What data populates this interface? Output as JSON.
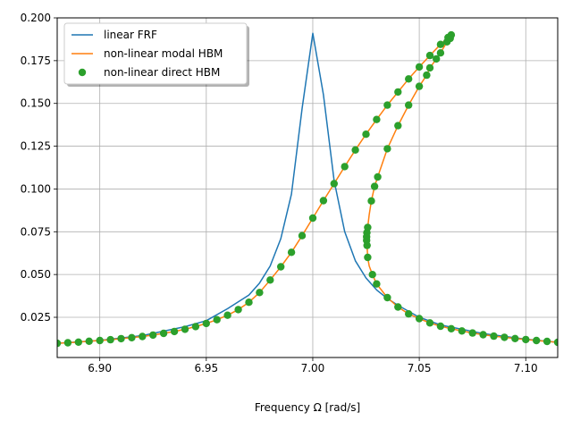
{
  "chart_data": {
    "type": "line",
    "title": "",
    "xlabel": "Frequency Ω [rad/s]",
    "ylabel": "",
    "xlim": [
      6.88,
      7.115
    ],
    "ylim": [
      0.0015,
      0.2
    ],
    "grid": true,
    "legend_position": "top-left",
    "x_ticks": [
      6.9,
      6.95,
      7.0,
      7.05,
      7.1
    ],
    "x_tick_labels": [
      "6.90",
      "6.95",
      "7.00",
      "7.05",
      "7.10"
    ],
    "y_ticks": [
      0.025,
      0.05,
      0.075,
      0.1,
      0.125,
      0.15,
      0.175,
      0.2
    ],
    "y_tick_labels": [
      "0.025",
      "0.050",
      "0.075",
      "0.100",
      "0.125",
      "0.150",
      "0.175",
      "0.200"
    ],
    "series": [
      {
        "name": "linear FRF",
        "style": "line",
        "color": "#1f77b4",
        "x": [
          6.88,
          6.9,
          6.92,
          6.94,
          6.95,
          6.96,
          6.97,
          6.975,
          6.98,
          6.985,
          6.99,
          6.995,
          7.0,
          7.005,
          7.01,
          7.015,
          7.02,
          7.025,
          7.03,
          7.035,
          7.04,
          7.05,
          7.06,
          7.08,
          7.1,
          7.115
        ],
        "y": [
          0.0098,
          0.0115,
          0.0143,
          0.0195,
          0.023,
          0.03,
          0.038,
          0.045,
          0.055,
          0.071,
          0.097,
          0.147,
          0.191,
          0.155,
          0.105,
          0.075,
          0.058,
          0.048,
          0.041,
          0.036,
          0.032,
          0.025,
          0.0205,
          0.0155,
          0.0122,
          0.0104
        ]
      },
      {
        "name": "non-linear modal HBM",
        "style": "line",
        "color": "#ff7f0e",
        "x": [
          6.88,
          6.885,
          6.89,
          6.895,
          6.9,
          6.905,
          6.91,
          6.915,
          6.92,
          6.925,
          6.93,
          6.935,
          6.94,
          6.945,
          6.95,
          6.955,
          6.96,
          6.965,
          6.97,
          6.975,
          6.98,
          6.985,
          6.99,
          6.995,
          7.0,
          7.005,
          7.01,
          7.015,
          7.02,
          7.025,
          7.03,
          7.035,
          7.04,
          7.045,
          7.05,
          7.055,
          7.06,
          7.0635,
          7.065,
          7.0645,
          7.063,
          7.06,
          7.058,
          7.055,
          7.0535,
          7.05,
          7.045,
          7.04,
          7.035,
          7.0305,
          7.029,
          7.0275,
          7.0265,
          7.0258,
          7.0254,
          7.0253,
          7.0253,
          7.0255,
          7.0258,
          7.0265,
          7.028,
          7.03,
          7.035,
          7.04,
          7.045,
          7.05,
          7.055,
          7.06,
          7.065,
          7.07,
          7.075,
          7.08,
          7.085,
          7.09,
          7.095,
          7.1,
          7.105,
          7.11,
          7.115
        ],
        "y": [
          0.0098,
          0.0101,
          0.0105,
          0.011,
          0.0114,
          0.0119,
          0.0125,
          0.0131,
          0.0138,
          0.0146,
          0.0156,
          0.0167,
          0.018,
          0.0196,
          0.0214,
          0.0236,
          0.0262,
          0.0295,
          0.0338,
          0.0395,
          0.0468,
          0.0545,
          0.063,
          0.0727,
          0.083,
          0.0932,
          0.1031,
          0.1131,
          0.1228,
          0.132,
          0.1406,
          0.149,
          0.1567,
          0.1643,
          0.1713,
          0.178,
          0.1845,
          0.1885,
          0.19,
          0.188,
          0.186,
          0.1795,
          0.176,
          0.1708,
          0.1665,
          0.16,
          0.149,
          0.137,
          0.1235,
          0.107,
          0.1015,
          0.093,
          0.085,
          0.0775,
          0.0745,
          0.072,
          0.07,
          0.067,
          0.06,
          0.055,
          0.05,
          0.0445,
          0.0365,
          0.031,
          0.027,
          0.0242,
          0.0217,
          0.0198,
          0.0183,
          0.017,
          0.0158,
          0.0148,
          0.014,
          0.0133,
          0.0126,
          0.012,
          0.0114,
          0.0109,
          0.0104
        ]
      },
      {
        "name": "non-linear direct HBM",
        "style": "markers",
        "color": "#2ca02c",
        "x": [
          6.88,
          6.885,
          6.89,
          6.895,
          6.9,
          6.905,
          6.91,
          6.915,
          6.92,
          6.925,
          6.93,
          6.935,
          6.94,
          6.945,
          6.95,
          6.955,
          6.96,
          6.965,
          6.97,
          6.975,
          6.98,
          6.985,
          6.99,
          6.995,
          7.0,
          7.005,
          7.01,
          7.015,
          7.02,
          7.025,
          7.03,
          7.035,
          7.04,
          7.045,
          7.05,
          7.055,
          7.06,
          7.0635,
          7.065,
          7.0645,
          7.063,
          7.06,
          7.058,
          7.055,
          7.0535,
          7.05,
          7.045,
          7.04,
          7.035,
          7.0305,
          7.029,
          7.0275,
          7.0258,
          7.0254,
          7.0253,
          7.0253,
          7.0255,
          7.0258,
          7.028,
          7.03,
          7.035,
          7.04,
          7.045,
          7.05,
          7.055,
          7.06,
          7.065,
          7.07,
          7.075,
          7.08,
          7.085,
          7.09,
          7.095,
          7.1,
          7.105,
          7.11,
          7.115
        ],
        "y": [
          0.0098,
          0.0101,
          0.0105,
          0.011,
          0.0114,
          0.0119,
          0.0125,
          0.0131,
          0.0138,
          0.0146,
          0.0156,
          0.0167,
          0.018,
          0.0196,
          0.0214,
          0.0236,
          0.0262,
          0.0295,
          0.0338,
          0.0395,
          0.0468,
          0.0545,
          0.063,
          0.0727,
          0.083,
          0.0932,
          0.1031,
          0.1131,
          0.1228,
          0.132,
          0.1406,
          0.149,
          0.1567,
          0.1643,
          0.1713,
          0.178,
          0.1845,
          0.1885,
          0.19,
          0.188,
          0.186,
          0.1795,
          0.176,
          0.1708,
          0.1665,
          0.16,
          0.149,
          0.137,
          0.1235,
          0.107,
          0.1015,
          0.093,
          0.0775,
          0.0745,
          0.072,
          0.07,
          0.067,
          0.06,
          0.05,
          0.0445,
          0.0365,
          0.031,
          0.027,
          0.0242,
          0.0217,
          0.0198,
          0.0183,
          0.017,
          0.0158,
          0.0148,
          0.014,
          0.0133,
          0.0126,
          0.012,
          0.0114,
          0.0109,
          0.0104
        ]
      }
    ]
  }
}
